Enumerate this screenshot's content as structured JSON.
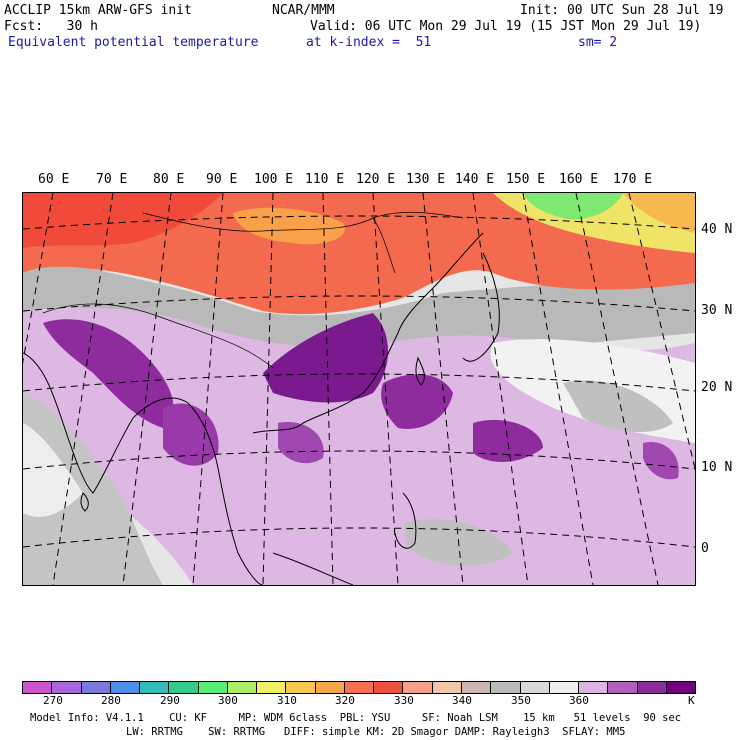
{
  "header": {
    "line1_left": "ACCLIP 15km ARW-GFS init",
    "line1_mid": "NCAR/MMM",
    "line1_right": "Init: 00 UTC Sun 28 Jul 19",
    "line2_left": "Fcst:   30 h",
    "line2_right": "Valid: 06 UTC Mon 29 Jul 19 (15 JST Mon 29 Jul 19)",
    "line3_left": "Equivalent potential temperature",
    "line3_mid": "at k-index =  51",
    "line3_right": "sm= 2"
  },
  "map": {
    "lon_labels": [
      "60 E",
      "70 E",
      "80 E",
      "90 E",
      "100 E",
      "110 E",
      "120 E",
      "130 E",
      "140 E",
      "150 E",
      "160 E",
      "170 E"
    ],
    "lat_labels": [
      "40 N",
      "30 N",
      "20 N",
      "10 N",
      "0"
    ]
  },
  "colorbar": {
    "colors": [
      "#cc55cc",
      "#aa66dd",
      "#7a7add",
      "#4f8fe8",
      "#33bbbb",
      "#33cc88",
      "#55ee77",
      "#aaf066",
      "#f0f066",
      "#f8c850",
      "#f8a848",
      "#f87050",
      "#f05040",
      "#f8a088",
      "#f4c4a8",
      "#c8b8b0",
      "#bbbbbb",
      "#d8d8d8",
      "#eeeeee",
      "#dcb4e0",
      "#b060b8",
      "#8c2c9c",
      "#700080"
    ],
    "tick_labels": [
      "270",
      "280",
      "290",
      "300",
      "310",
      "320",
      "330",
      "340",
      "350",
      "360",
      "K"
    ]
  },
  "footer": {
    "line1": "Model Info: V4.1.1    CU: KF     MP: WDM 6class  PBL: YSU     SF: Noah LSM    15 km   51 levels  90 sec",
    "line2": "LW: RRTMG    SW: RRTMG   DIFF: simple KM: 2D Smagor DAMP: Rayleigh3  SFLAY: MM5"
  }
}
